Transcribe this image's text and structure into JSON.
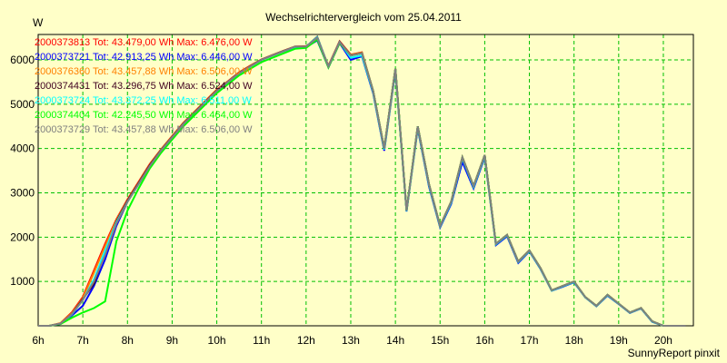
{
  "chart_data": {
    "type": "line",
    "title": "Wechselrichtervergleich vom 25.04.2011",
    "ylabel": "W",
    "xlabel": "",
    "footer": "SunnyReport pinxit",
    "xlim": [
      6,
      20.7
    ],
    "ylim": [
      0,
      6600
    ],
    "grid": true,
    "x_ticks": [
      6,
      7,
      8,
      9,
      10,
      11,
      12,
      13,
      14,
      15,
      16,
      17,
      18,
      19,
      20
    ],
    "x_tick_labels": [
      "6h",
      "7h",
      "8h",
      "9h",
      "10h",
      "11h",
      "12h",
      "13h",
      "14h",
      "15h",
      "16h",
      "17h",
      "18h",
      "19h",
      "20h"
    ],
    "y_ticks": [
      1000,
      2000,
      3000,
      4000,
      5000,
      6000
    ],
    "y_tick_labels": [
      "1000",
      "2000",
      "3000",
      "4000",
      "5000",
      "6000"
    ],
    "legend_placement": "top-left",
    "x": [
      6,
      6.25,
      6.5,
      6.75,
      7,
      7.25,
      7.5,
      7.75,
      8,
      8.25,
      8.5,
      8.75,
      9,
      9.25,
      9.5,
      9.75,
      10,
      10.25,
      10.5,
      10.75,
      11,
      11.25,
      11.5,
      11.75,
      12,
      12.25,
      12.5,
      12.75,
      13,
      13.25,
      13.5,
      13.75,
      14,
      14.25,
      14.5,
      14.75,
      15,
      15.25,
      15.5,
      15.75,
      16,
      16.25,
      16.5,
      16.75,
      17,
      17.25,
      17.5,
      17.75,
      18,
      18.25,
      18.5,
      18.75,
      19,
      19.25,
      19.5,
      19.75,
      20,
      20.5
    ],
    "series": [
      {
        "name": "2000373813",
        "label": "2000373813 Tot: 43.479,00 Wh Max: 6.476,00 W",
        "color": "#ff0000",
        "values": [
          0,
          0,
          60,
          300,
          650,
          1250,
          1850,
          2400,
          2850,
          3250,
          3650,
          3980,
          4280,
          4580,
          4830,
          5080,
          5330,
          5520,
          5720,
          5870,
          6010,
          6110,
          6210,
          6300,
          6310,
          6470,
          5870,
          6420,
          6120,
          6170,
          5300,
          4000,
          5800,
          2600,
          4500,
          3200,
          2250,
          2800,
          3800,
          3150,
          3850,
          1850,
          2050,
          1450,
          1700,
          1300,
          800,
          900,
          1000,
          650,
          450,
          700,
          500,
          300,
          400,
          100,
          0,
          0
        ]
      },
      {
        "name": "2000373721",
        "label": "2000373721 Tot: 42.913,25 Wh Max: 6.446,00 W",
        "color": "#0000ff",
        "values": [
          0,
          0,
          40,
          230,
          450,
          900,
          1500,
          2250,
          2800,
          3200,
          3600,
          3950,
          4250,
          4550,
          4800,
          5050,
          5300,
          5500,
          5700,
          5850,
          6000,
          6100,
          6200,
          6280,
          6290,
          6440,
          5830,
          6380,
          6000,
          6080,
          5250,
          3950,
          5750,
          2580,
          4450,
          3150,
          2220,
          2750,
          3700,
          3100,
          3800,
          1820,
          2020,
          1420,
          1680,
          1280,
          790,
          880,
          980,
          640,
          440,
          680,
          490,
          290,
          390,
          90,
          0,
          0
        ]
      },
      {
        "name": "2000376360",
        "label": "2000376360 Tot: 43.457,88 Wh Max: 6.506,00 W",
        "color": "#ff8000",
        "values": [
          0,
          0,
          55,
          280,
          620,
          1200,
          1800,
          2380,
          2830,
          3230,
          3630,
          3970,
          4270,
          4570,
          4820,
          5070,
          5320,
          5510,
          5710,
          5860,
          6005,
          6105,
          6205,
          6300,
          6300,
          6500,
          5860,
          6410,
          6110,
          6160,
          5300,
          4000,
          5800,
          2600,
          4500,
          3200,
          2250,
          2800,
          3800,
          3150,
          3850,
          1850,
          2050,
          1450,
          1700,
          1300,
          800,
          900,
          1000,
          650,
          450,
          700,
          500,
          300,
          400,
          100,
          0,
          0
        ]
      },
      {
        "name": "2000374431",
        "label": "2000374431 Tot: 43.296,75 Wh Max: 6.524,00 W",
        "color": "#400020",
        "values": [
          0,
          0,
          50,
          260,
          600,
          950,
          1650,
          2350,
          2820,
          3220,
          3620,
          3960,
          4260,
          4560,
          4810,
          5060,
          5310,
          5505,
          5705,
          5855,
          6005,
          6105,
          6205,
          6300,
          6300,
          6520,
          5850,
          6410,
          6100,
          6150,
          5300,
          4000,
          5800,
          2600,
          4500,
          3200,
          2250,
          2800,
          3800,
          3150,
          3850,
          1850,
          2050,
          1450,
          1700,
          1300,
          800,
          900,
          1000,
          650,
          450,
          700,
          500,
          300,
          400,
          100,
          0,
          0
        ]
      },
      {
        "name": "2000373724",
        "label": "2000373724 Tot: 43.372,25 Wh Max: 6.511,00 W",
        "color": "#00ffff",
        "values": [
          0,
          0,
          50,
          250,
          580,
          1050,
          1700,
          2330,
          2800,
          3200,
          3600,
          3950,
          4250,
          4550,
          4800,
          5050,
          5300,
          5500,
          5700,
          5850,
          6000,
          6100,
          6200,
          6290,
          6300,
          6510,
          5850,
          6400,
          6050,
          6100,
          5280,
          3980,
          5780,
          2590,
          4480,
          3180,
          2240,
          2780,
          3780,
          3130,
          3830,
          1840,
          2040,
          1440,
          1690,
          1290,
          795,
          890,
          990,
          645,
          445,
          690,
          495,
          295,
          395,
          95,
          0,
          0
        ]
      },
      {
        "name": "2000374404",
        "label": "2000374404 Tot: 42.245,50 Wh Max: 6.464,00 W",
        "color": "#00ff00",
        "values": [
          0,
          0,
          40,
          180,
          300,
          400,
          550,
          1900,
          2600,
          3100,
          3550,
          3900,
          4200,
          4500,
          4750,
          5000,
          5250,
          5450,
          5650,
          5800,
          5950,
          6050,
          6150,
          6250,
          6270,
          6460,
          5830,
          6380,
          6100,
          6150,
          5300,
          4000,
          5800,
          2600,
          4500,
          3200,
          2250,
          2800,
          3800,
          3150,
          3850,
          1850,
          2050,
          1450,
          1700,
          1300,
          800,
          900,
          1000,
          650,
          450,
          700,
          500,
          300,
          400,
          100,
          0,
          0
        ]
      },
      {
        "name": "2000373729",
        "label": "2000373729 Tot: 43.457,88 Wh Max: 6.506,00 W",
        "color": "#808080",
        "values": [
          0,
          0,
          50,
          260,
          580,
          1000,
          1600,
          2300,
          2800,
          3200,
          3600,
          3950,
          4250,
          4550,
          4800,
          5050,
          5300,
          5500,
          5700,
          5850,
          6000,
          6100,
          6200,
          6300,
          6300,
          6500,
          5850,
          6400,
          6100,
          6150,
          5300,
          4000,
          5800,
          2600,
          4500,
          3200,
          2250,
          2800,
          3800,
          3150,
          3850,
          1850,
          2050,
          1450,
          1700,
          1300,
          800,
          900,
          1000,
          650,
          450,
          700,
          500,
          300,
          400,
          100,
          0,
          0
        ]
      }
    ]
  }
}
